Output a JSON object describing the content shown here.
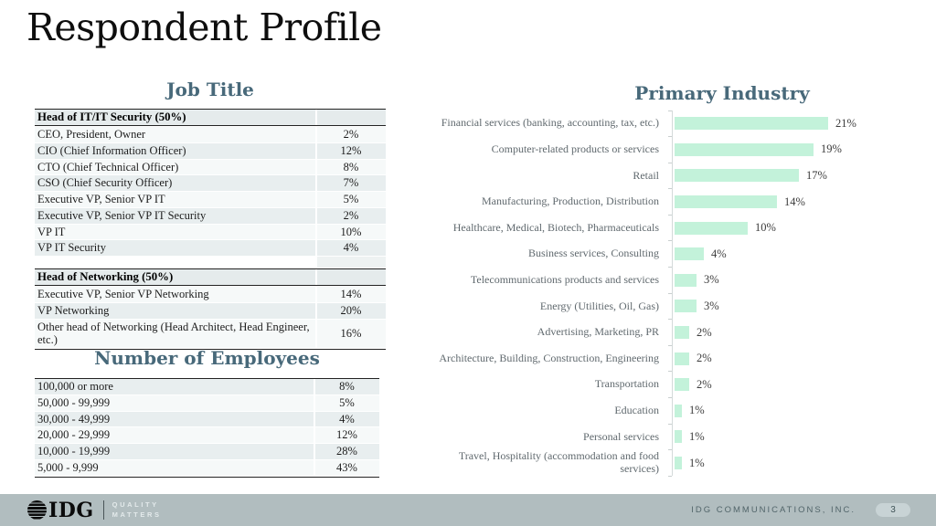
{
  "slide": {
    "title": "Respondent Profile"
  },
  "colors": {
    "bar_accent": "#c3f2da",
    "heading": "#48697a",
    "footer_band": "#b1bdbf",
    "table_band_dark": "#e8eeef",
    "table_band_light": "#f6f9f9"
  },
  "chart_data": [
    {
      "type": "bar",
      "orientation": "horizontal",
      "title": "Primary Industry",
      "categories": [
        "Financial services (banking, accounting, tax, etc.)",
        "Computer-related products or services",
        "Retail",
        "Manufacturing, Production, Distribution",
        "Healthcare, Medical, Biotech, Pharmaceuticals",
        "Business services, Consulting",
        "Telecommunications products and services",
        "Energy (Utilities, Oil, Gas)",
        "Advertising, Marketing, PR",
        "Architecture, Building, Construction, Engineering",
        "Transportation",
        "Education",
        "Personal services",
        "Travel, Hospitality (accommodation and food services)"
      ],
      "values": [
        21,
        19,
        17,
        14,
        10,
        4,
        3,
        3,
        2,
        2,
        2,
        1,
        1,
        1
      ],
      "value_labels": [
        "21%",
        "19%",
        "17%",
        "14%",
        "10%",
        "4%",
        "3%",
        "3%",
        "2%",
        "2%",
        "2%",
        "1%",
        "1%",
        "1%"
      ],
      "xlim": [
        0,
        22
      ],
      "grid": false,
      "legend": "none",
      "data_labels": "end-of-bar",
      "bar_color": "#c3f2da"
    },
    {
      "type": "table",
      "title": "Job Title",
      "rows": [
        {
          "type": "header",
          "label": "Head of IT/IT Security (50%)",
          "value": ""
        },
        {
          "label": "CEO, President, Owner",
          "value": "2%"
        },
        {
          "label": "CIO (Chief Information Officer)",
          "value": "12%"
        },
        {
          "label": "CTO (Chief Technical Officer)",
          "value": "8%"
        },
        {
          "label": "CSO (Chief Security Officer)",
          "value": "7%"
        },
        {
          "label": "Executive VP, Senior VP IT",
          "value": "5%"
        },
        {
          "label": "Executive VP, Senior VP IT Security",
          "value": "2%"
        },
        {
          "label": "VP IT",
          "value": "10%"
        },
        {
          "label": "VP IT Security",
          "value": "4%"
        },
        {
          "type": "spacer"
        },
        {
          "type": "header",
          "label": "Head of Networking (50%)",
          "value": ""
        },
        {
          "label": "Executive VP, Senior VP Networking",
          "value": "14%"
        },
        {
          "label": "VP Networking",
          "value": "20%"
        },
        {
          "label": "Other head of Networking (Head Architect, Head Engineer, etc.)",
          "value": "16%"
        }
      ]
    },
    {
      "type": "table",
      "title": "Number of Employees",
      "rows": [
        {
          "label": "100,000 or more",
          "value": "8%"
        },
        {
          "label": "50,000 - 99,999",
          "value": "5%"
        },
        {
          "label": "30,000 - 49,999",
          "value": "4%"
        },
        {
          "label": "20,000 - 29,999",
          "value": "12%"
        },
        {
          "label": "10,000 - 19,999",
          "value": "28%"
        },
        {
          "label": "5,000 - 9,999",
          "value": "43%"
        }
      ]
    }
  ],
  "footer": {
    "logo_icon": "idg-globe-logo",
    "logo_text": "IDG",
    "tagline_line1": "QUALITY",
    "tagline_line2": "MATTERS",
    "company": "IDG COMMUNICATIONS, INC.",
    "page_number": "3"
  }
}
